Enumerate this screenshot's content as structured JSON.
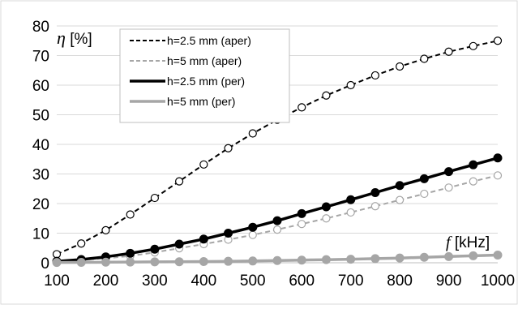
{
  "chart_data": {
    "type": "line",
    "title": "",
    "xlabel_symbol": "f",
    "xlabel_unit": " [kHz]",
    "ylabel_symbol": "η",
    "ylabel_unit": " [%]",
    "xlim": [
      100,
      1000
    ],
    "ylim": [
      0,
      80
    ],
    "x_ticks": [
      100,
      200,
      300,
      400,
      500,
      600,
      700,
      800,
      900,
      1000
    ],
    "y_ticks": [
      0,
      10,
      20,
      30,
      40,
      50,
      60,
      70,
      80
    ],
    "grid": "horizontal",
    "legend_placement": "top-left",
    "x": [
      100,
      150,
      200,
      250,
      300,
      350,
      400,
      450,
      500,
      550,
      600,
      650,
      700,
      750,
      800,
      850,
      900,
      950,
      1000
    ],
    "series": [
      {
        "name": "h=2.5 mm (aper)",
        "color": "#000000",
        "line": "dashed",
        "marker": "open-circle",
        "values": [
          2.9,
          6.5,
          11.0,
          16.3,
          21.9,
          27.5,
          33.2,
          38.7,
          43.7,
          48.3,
          52.5,
          56.5,
          60.0,
          63.3,
          66.3,
          68.9,
          71.3,
          73.2,
          75.0
        ]
      },
      {
        "name": "h=5 mm (aper)",
        "color": "#a6a6a6",
        "line": "dashed",
        "marker": "open-circle",
        "values": [
          0.5,
          1.0,
          1.5,
          2.3,
          3.5,
          4.9,
          6.3,
          7.8,
          9.4,
          11.2,
          13.1,
          15.0,
          17.0,
          19.1,
          21.2,
          23.3,
          25.4,
          27.5,
          29.5
        ]
      },
      {
        "name": "h=2.5 mm (per)",
        "color": "#000000",
        "line": "solid",
        "marker": "filled-circle",
        "values": [
          0.5,
          1.1,
          2.0,
          3.2,
          4.6,
          6.3,
          8.0,
          10.0,
          12.0,
          14.2,
          16.6,
          18.9,
          21.3,
          23.7,
          26.1,
          28.4,
          30.8,
          33.1,
          35.4
        ]
      },
      {
        "name": "h=5 mm (per)",
        "color": "#a6a6a6",
        "line": "solid",
        "marker": "filled-circle",
        "values": [
          0.1,
          0.15,
          0.2,
          0.25,
          0.3,
          0.35,
          0.4,
          0.5,
          0.6,
          0.75,
          0.9,
          1.05,
          1.2,
          1.4,
          1.6,
          1.85,
          2.1,
          2.35,
          2.6
        ]
      }
    ]
  }
}
